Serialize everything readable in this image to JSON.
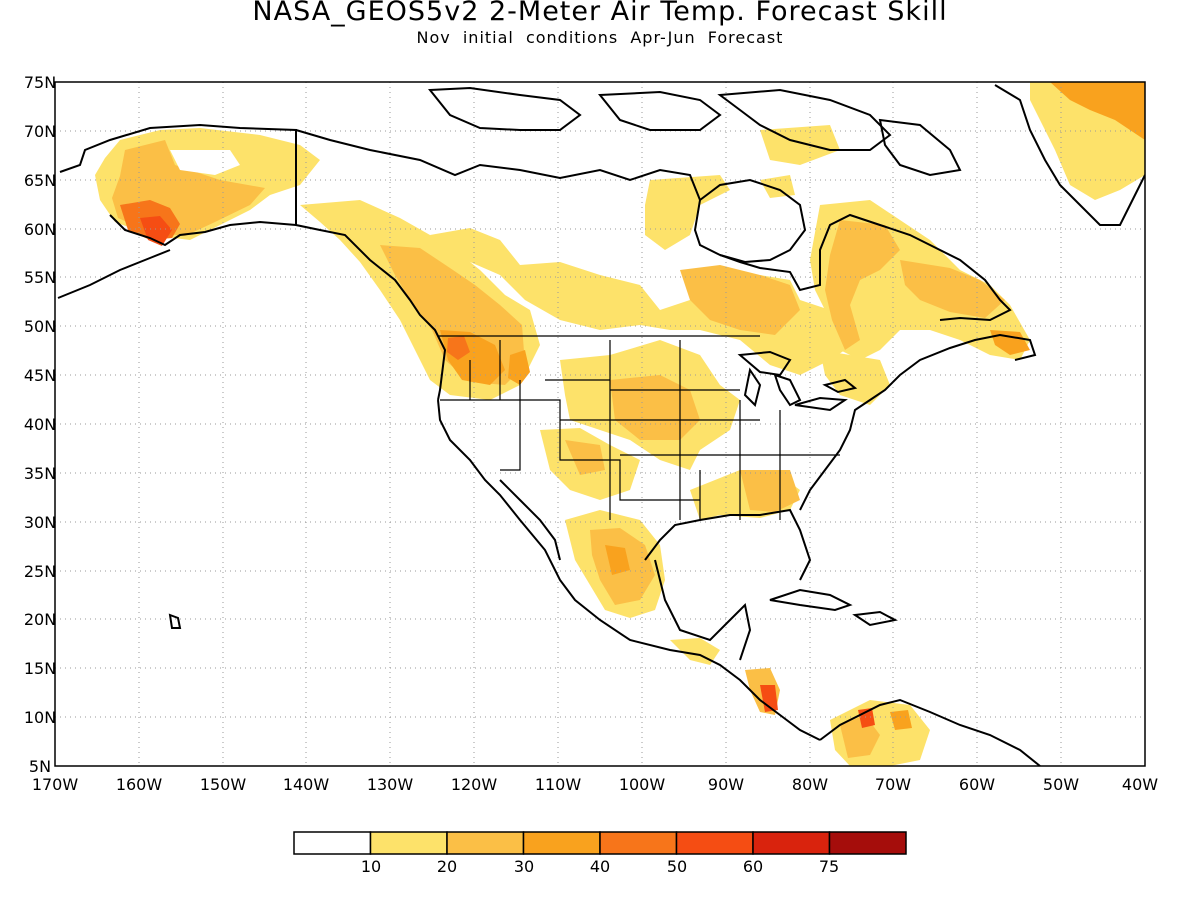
{
  "title": "NASA_GEOS5v2 2-Meter Air Temp. Forecast Skill",
  "subtitle": "Nov initial conditions  Apr-Jun Forecast",
  "lat_labels": [
    "75N",
    "70N",
    "65N",
    "60N",
    "55N",
    "50N",
    "45N",
    "40N",
    "35N",
    "30N",
    "25N",
    "20N",
    "15N",
    "10N",
    "5N"
  ],
  "lon_labels": [
    "170W",
    "160W",
    "150W",
    "140W",
    "130W",
    "120W",
    "110W",
    "100W",
    "90W",
    "80W",
    "70W",
    "60W",
    "50W",
    "40W"
  ],
  "colorbar": {
    "colors": [
      "#ffffff",
      "#fde26a",
      "#fbbf46",
      "#f9a21e",
      "#f7751a",
      "#f54d13",
      "#d9230d",
      "#a50d0b"
    ],
    "labels": [
      "10",
      "20",
      "30",
      "40",
      "50",
      "60",
      "75"
    ]
  },
  "colors": {
    "land_outline": "#000000",
    "grid": "#9a9a9a"
  }
}
